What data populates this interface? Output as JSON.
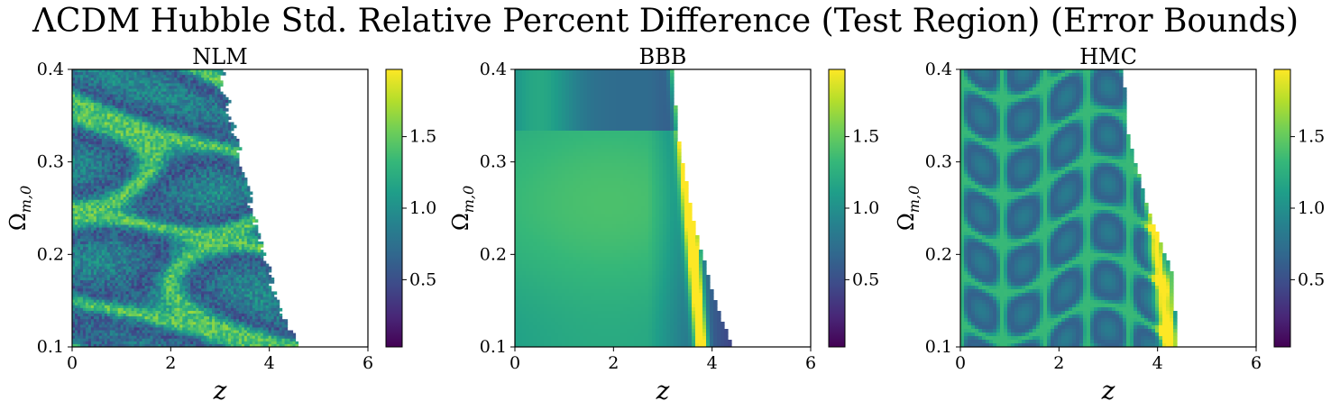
{
  "chart_data": {
    "type": "heatmap",
    "title": "ΛCDM Hubble Std. Relative Percent Difference (Test Region) (Error Bounds)",
    "xlabel": "z",
    "ylabel": "Ω_{m,0}",
    "xlim": [
      0,
      6
    ],
    "ylim": [
      0.1,
      0.4
    ],
    "xticks": [
      "0",
      "2",
      "4",
      "6"
    ],
    "yticks": [
      "0.1",
      "0.2",
      "0.3",
      "0.4"
    ],
    "colormap": "viridis",
    "colorbar_range": [
      0.03,
      1.97
    ],
    "colorbar_ticks": [
      "0.5",
      "1.0",
      "1.5"
    ],
    "colors": {
      "viridis_stops": [
        "#440154",
        "#482878",
        "#3e4a89",
        "#31688e",
        "#26828e",
        "#1f9e89",
        "#35b779",
        "#6ece58",
        "#b5de2b",
        "#fde725"
      ]
    },
    "panels": [
      {
        "title": "NLM",
        "noisy": true,
        "valid_edge": [
          [
            4.6,
            0.1
          ],
          [
            4.2,
            0.14
          ],
          [
            3.9,
            0.2
          ],
          [
            3.5,
            0.28
          ],
          [
            3.2,
            0.35
          ],
          [
            3.0,
            0.4
          ]
        ]
      },
      {
        "title": "BBB",
        "noisy": false,
        "valid_edge": [
          [
            4.4,
            0.1
          ],
          [
            4.0,
            0.16
          ],
          [
            3.6,
            0.24
          ],
          [
            3.3,
            0.33
          ],
          [
            3.2,
            0.4
          ]
        ]
      },
      {
        "title": "HMC",
        "noisy": false,
        "valid_edge": [
          [
            4.4,
            0.1
          ],
          [
            4.3,
            0.18
          ],
          [
            3.8,
            0.25
          ],
          [
            3.4,
            0.33
          ],
          [
            3.3,
            0.4
          ]
        ]
      }
    ]
  }
}
